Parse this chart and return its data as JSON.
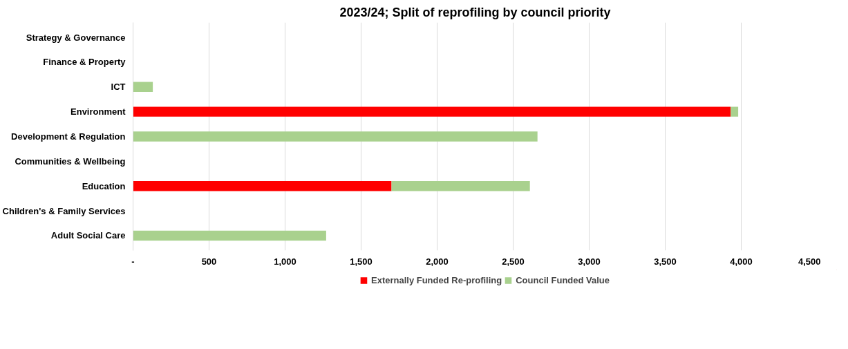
{
  "chart_data": {
    "type": "bar",
    "orientation": "horizontal",
    "stacked": true,
    "title": "2023/24; Split of reprofiling by council priority",
    "categories": [
      "Strategy & Governance",
      "Finance & Property",
      "ICT",
      "Environment",
      "Development & Regulation",
      "Communities & Wellbeing",
      "Education",
      "Children's & Family Services",
      "Adult Social Care"
    ],
    "series": [
      {
        "name": "Externally Funded Re-profiling",
        "color": "#ff0000",
        "values": [
          0,
          0,
          0,
          3930,
          0,
          0,
          1700,
          0,
          0
        ]
      },
      {
        "name": "Council Funded Value",
        "color": "#a9d18e",
        "values": [
          0,
          0,
          130,
          50,
          2660,
          0,
          910,
          0,
          1270
        ]
      }
    ],
    "xlim": [
      0,
      4500
    ],
    "xticks": [
      {
        "value": 0,
        "label": "-"
      },
      {
        "value": 500,
        "label": "500"
      },
      {
        "value": 1000,
        "label": "1,000"
      },
      {
        "value": 1500,
        "label": "1,500"
      },
      {
        "value": 2000,
        "label": "2,000"
      },
      {
        "value": 2500,
        "label": "2,500"
      },
      {
        "value": 3000,
        "label": "3,000"
      },
      {
        "value": 3500,
        "label": "3,500"
      },
      {
        "value": 4000,
        "label": "4,000"
      },
      {
        "value": 4500,
        "label": "4,500"
      }
    ],
    "grid": "x",
    "legend": "bottom"
  }
}
